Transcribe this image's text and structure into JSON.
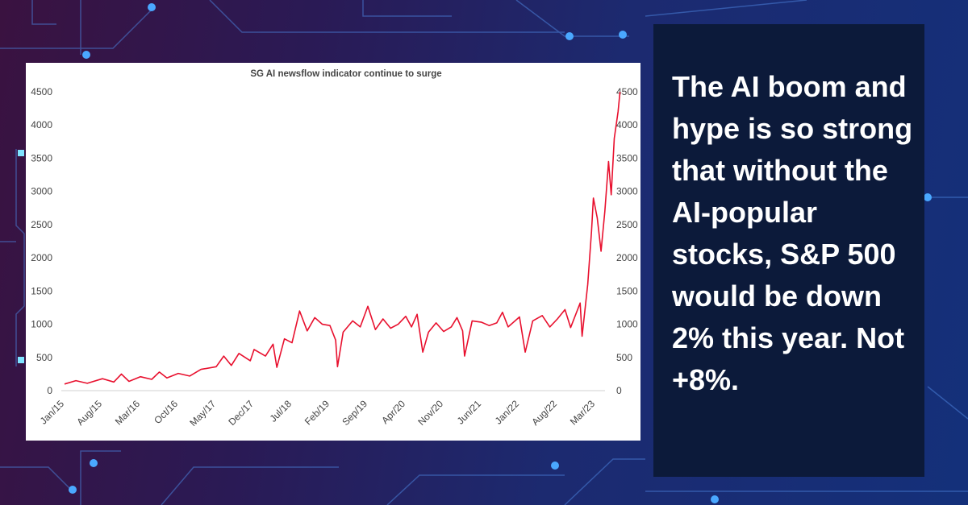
{
  "panel": {
    "text": "The AI boom and hype is so strong that without the AI-popular stocks, S&P 500 would be down 2% this year. Not +8%."
  },
  "colors": {
    "line": "#e8102e",
    "panel_bg": "#0c1a3a",
    "text": "#ffffff"
  },
  "chart_data": {
    "type": "line",
    "title": "SG AI newsflow indicator continue to surge",
    "xlabel": "",
    "ylabel": "",
    "ylim": [
      0,
      4500
    ],
    "yticks": [
      0,
      500,
      1000,
      1500,
      2000,
      2500,
      3000,
      3500,
      4000,
      4500
    ],
    "y_axis_sides": [
      "left",
      "right"
    ],
    "grid": false,
    "xtick_labels": [
      "Jan/15",
      "Aug/15",
      "Mar/16",
      "Oct/16",
      "May/17",
      "Dec/17",
      "Jul/18",
      "Feb/19",
      "Sep/19",
      "Apr/20",
      "Nov/20",
      "Jun/21",
      "Jan/22",
      "Aug/22",
      "Mar/23"
    ],
    "series": [
      {
        "name": "SG AI newsflow indicator",
        "period_start": "Jan/15",
        "period_end": "Apr/23",
        "points": [
          [
            0,
            100
          ],
          [
            0.3,
            150
          ],
          [
            0.6,
            110
          ],
          [
            1,
            180
          ],
          [
            1.3,
            130
          ],
          [
            1.5,
            250
          ],
          [
            1.7,
            140
          ],
          [
            2,
            210
          ],
          [
            2.3,
            170
          ],
          [
            2.5,
            280
          ],
          [
            2.7,
            190
          ],
          [
            3,
            260
          ],
          [
            3.3,
            220
          ],
          [
            3.6,
            320
          ],
          [
            4,
            360
          ],
          [
            4.2,
            520
          ],
          [
            4.4,
            380
          ],
          [
            4.6,
            560
          ],
          [
            4.9,
            450
          ],
          [
            5,
            620
          ],
          [
            5.3,
            520
          ],
          [
            5.5,
            700
          ],
          [
            5.6,
            350
          ],
          [
            5.8,
            780
          ],
          [
            6,
            720
          ],
          [
            6.2,
            1200
          ],
          [
            6.4,
            900
          ],
          [
            6.6,
            1100
          ],
          [
            6.8,
            1000
          ],
          [
            7,
            980
          ],
          [
            7.15,
            760
          ],
          [
            7.2,
            360
          ],
          [
            7.35,
            880
          ],
          [
            7.6,
            1050
          ],
          [
            7.8,
            960
          ],
          [
            8,
            1270
          ],
          [
            8.2,
            920
          ],
          [
            8.4,
            1080
          ],
          [
            8.6,
            940
          ],
          [
            8.8,
            1000
          ],
          [
            9,
            1120
          ],
          [
            9.15,
            960
          ],
          [
            9.3,
            1150
          ],
          [
            9.45,
            580
          ],
          [
            9.6,
            880
          ],
          [
            9.8,
            1020
          ],
          [
            10,
            890
          ],
          [
            10.2,
            960
          ],
          [
            10.35,
            1100
          ],
          [
            10.5,
            900
          ],
          [
            10.55,
            520
          ],
          [
            10.75,
            1050
          ],
          [
            11,
            1030
          ],
          [
            11.2,
            980
          ],
          [
            11.4,
            1020
          ],
          [
            11.55,
            1180
          ],
          [
            11.7,
            960
          ],
          [
            12,
            1110
          ],
          [
            12.15,
            580
          ],
          [
            12.35,
            1050
          ],
          [
            12.6,
            1130
          ],
          [
            12.8,
            960
          ],
          [
            13,
            1080
          ],
          [
            13.2,
            1220
          ],
          [
            13.35,
            950
          ],
          [
            13.6,
            1320
          ],
          [
            13.65,
            820
          ],
          [
            13.8,
            1600
          ],
          [
            13.9,
            2400
          ],
          [
            13.95,
            2900
          ],
          [
            14.05,
            2600
          ],
          [
            14.15,
            2100
          ],
          [
            14.25,
            2700
          ],
          [
            14.35,
            3450
          ],
          [
            14.42,
            2950
          ],
          [
            14.5,
            3800
          ],
          [
            14.6,
            4200
          ],
          [
            14.65,
            4500
          ]
        ]
      }
    ]
  }
}
